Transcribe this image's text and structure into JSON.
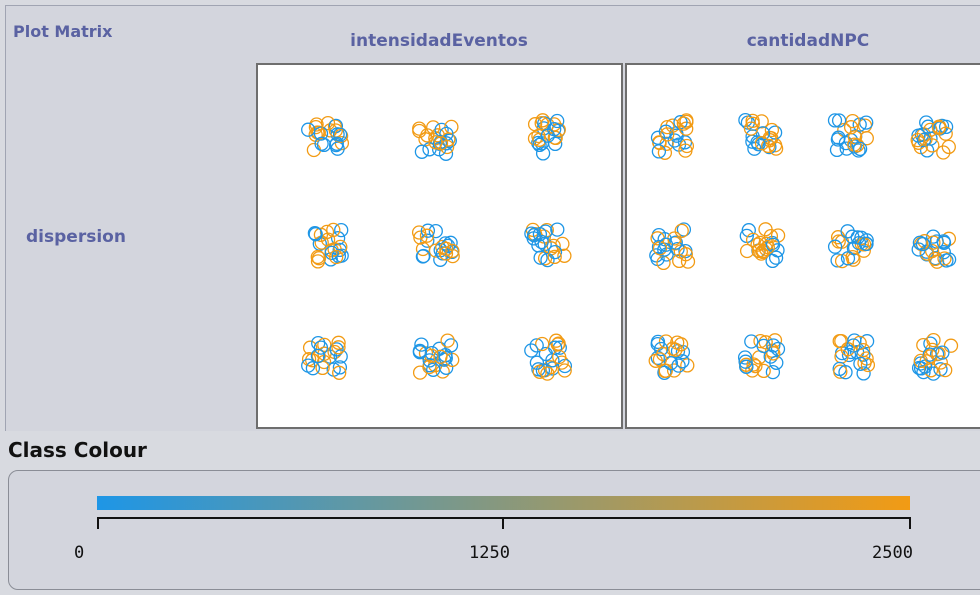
{
  "panel": {
    "title": "Plot Matrix",
    "columns": [
      "intensidadEventos",
      "cantidadNPC"
    ],
    "rows": [
      "dispersion"
    ]
  },
  "colors": {
    "low": "#1e96e6",
    "high": "#f29b14",
    "panel_bg": "#d3d5dd",
    "label_text": "#5a62a2"
  },
  "legend": {
    "title": "Class Colour",
    "ticks": [
      "0",
      "1250",
      "2500"
    ],
    "min": 0,
    "max": 2500
  },
  "chart_data": [
    {
      "type": "scatter",
      "xlabel": "intensidadEventos",
      "ylabel": "dispersion",
      "x_levels": 3,
      "y_levels": 3,
      "color_range": [
        0,
        2500
      ]
    },
    {
      "type": "scatter",
      "xlabel": "cantidadNPC",
      "ylabel": "dispersion",
      "x_levels": 4,
      "y_levels": 3,
      "color_range": [
        0,
        2500
      ]
    }
  ]
}
